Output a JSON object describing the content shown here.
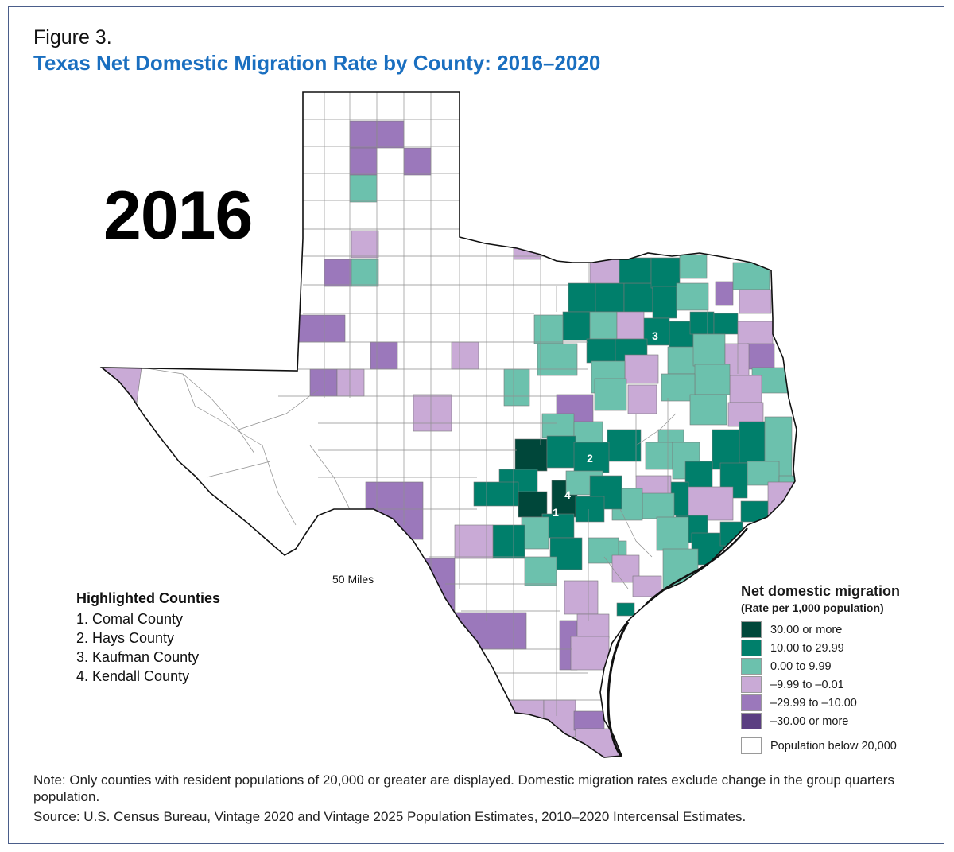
{
  "figure_label": "Figure 3.",
  "title": "Texas Net Domestic Migration Rate by County: 2016–2020",
  "year": "2016",
  "highlighted": {
    "header": "Highlighted Counties",
    "items": [
      "1. Comal County",
      "2. Hays County",
      "3. Kaufman County",
      "4. Kendall County"
    ]
  },
  "scale_label": "50 Miles",
  "legend": {
    "title": "Net domestic migration",
    "subtitle": "(Rate per 1,000 population)",
    "items": [
      {
        "label": "30.00 or more",
        "color": "#00473a"
      },
      {
        "label": "10.00 to 29.99",
        "color": "#007f6b"
      },
      {
        "label": "0.00 to 9.99",
        "color": "#6cc1ad"
      },
      {
        "label": "–9.99 to –0.01",
        "color": "#c9aad6"
      },
      {
        "label": "–29.99 to –10.00",
        "color": "#9b78bb"
      },
      {
        "label": "–30.00 or more",
        "color": "#5b3f82"
      },
      {
        "label": "Population below 20,000",
        "color": "#ffffff"
      }
    ]
  },
  "map_labels": [
    "1",
    "2",
    "3",
    "4"
  ],
  "note": "Note: Only counties with resident populations of 20,000 or greater are displayed. Domestic migration rates exclude change in the group quarters population.",
  "source": "Source: U.S. Census Bureau, Vintage 2020 and Vintage 2025 Population Estimates, 2010–2020 Intercensal Estimates."
}
